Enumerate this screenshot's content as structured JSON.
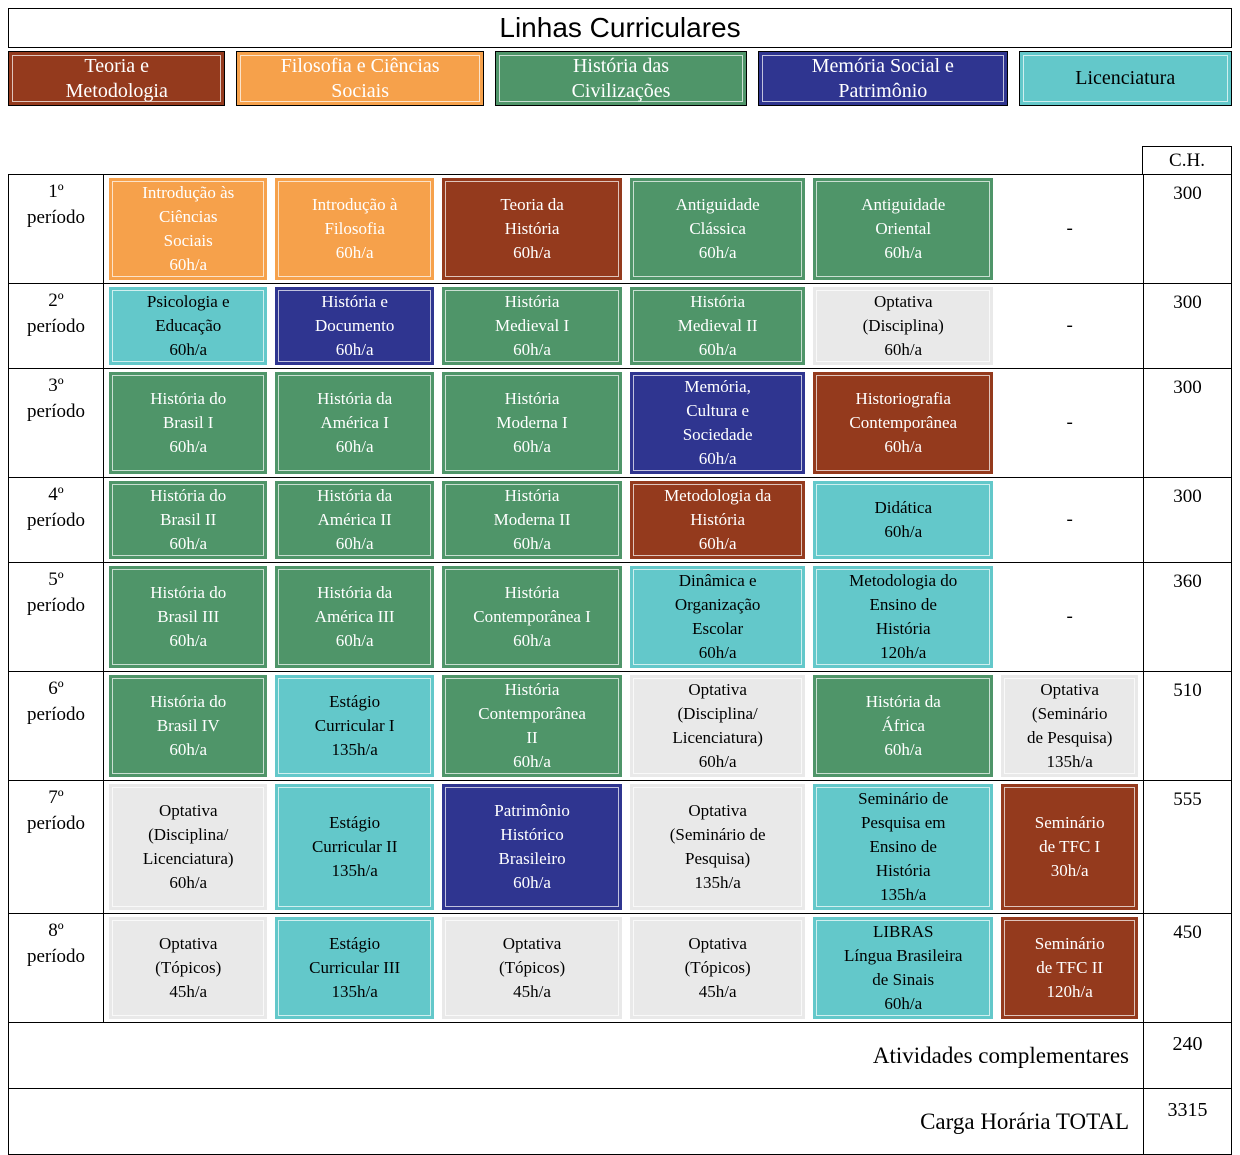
{
  "title": "Linhas Curriculares",
  "ch_header": "C.H.",
  "categories": {
    "teoria": {
      "color": "#943a1d",
      "text_color": "#ffffff"
    },
    "filosofia": {
      "color": "#f6a14b",
      "text_color": "#ffffff"
    },
    "civilizacoes": {
      "color": "#4f9569",
      "text_color": "#ffffff"
    },
    "memoria": {
      "color": "#2f3590",
      "text_color": "#ffffff"
    },
    "licenciatura": {
      "color": "#63c8ca",
      "text_color": "#000000"
    },
    "optativa": {
      "color": "#e9e9e9",
      "text_color": "#000000"
    }
  },
  "legend": [
    {
      "category": "teoria",
      "label": "Teoria e\nMetodologia"
    },
    {
      "category": "filosofia",
      "label": "Filosofia e Ciências\nSociais"
    },
    {
      "category": "civilizacoes",
      "label": "História das\nCivilizações"
    },
    {
      "category": "memoria",
      "label": "Memória Social e\nPatrimônio"
    },
    {
      "category": "licenciatura",
      "label": "Licenciatura"
    }
  ],
  "rows": [
    {
      "period": "1º\nperíodo",
      "ch": "300",
      "cells": [
        {
          "category": "filosofia",
          "text": "Introdução às\nCiências\nSociais\n60h/a"
        },
        {
          "category": "filosofia",
          "text": "Introdução à\nFilosofia\n60h/a"
        },
        {
          "category": "teoria",
          "text": "Teoria da\nHistória\n60h/a"
        },
        {
          "category": "civilizacoes",
          "text": "Antiguidade\nClássica\n60h/a"
        },
        {
          "category": "civilizacoes",
          "text": "Antiguidade\nOriental\n60h/a"
        },
        {
          "category": "none",
          "text": "-"
        }
      ]
    },
    {
      "period": "2º\nperíodo",
      "ch": "300",
      "cells": [
        {
          "category": "licenciatura",
          "text": "Psicologia e\nEducação\n60h/a"
        },
        {
          "category": "memoria",
          "text": "História e\nDocumento\n60h/a"
        },
        {
          "category": "civilizacoes",
          "text": "História\nMedieval I\n60h/a"
        },
        {
          "category": "civilizacoes",
          "text": "História\nMedieval II\n60h/a"
        },
        {
          "category": "optativa",
          "text": "Optativa\n(Disciplina)\n60h/a"
        },
        {
          "category": "none",
          "text": "-"
        }
      ]
    },
    {
      "period": "3º\nperíodo",
      "ch": "300",
      "cells": [
        {
          "category": "civilizacoes",
          "text": "História do\nBrasil I\n60h/a"
        },
        {
          "category": "civilizacoes",
          "text": "História da\nAmérica I\n60h/a"
        },
        {
          "category": "civilizacoes",
          "text": "História\nModerna I\n60h/a"
        },
        {
          "category": "memoria",
          "text": "Memória,\nCultura e\nSociedade\n60h/a"
        },
        {
          "category": "teoria",
          "text": "Historiografia\nContemporânea\n60h/a"
        },
        {
          "category": "none",
          "text": "-"
        }
      ]
    },
    {
      "period": "4º\nperíodo",
      "ch": "300",
      "cells": [
        {
          "category": "civilizacoes",
          "text": "História do\nBrasil II\n60h/a"
        },
        {
          "category": "civilizacoes",
          "text": "História da\nAmérica II\n60h/a"
        },
        {
          "category": "civilizacoes",
          "text": "História\nModerna II\n60h/a"
        },
        {
          "category": "teoria",
          "text": "Metodologia da\nHistória\n60h/a"
        },
        {
          "category": "licenciatura",
          "text": "Didática\n60h/a"
        },
        {
          "category": "none",
          "text": "-"
        }
      ]
    },
    {
      "period": "5º\nperíodo",
      "ch": "360",
      "cells": [
        {
          "category": "civilizacoes",
          "text": "História do\nBrasil III\n60h/a"
        },
        {
          "category": "civilizacoes",
          "text": "História da\nAmérica III\n60h/a"
        },
        {
          "category": "civilizacoes",
          "text": "História\nContemporânea I\n60h/a"
        },
        {
          "category": "licenciatura",
          "text": "Dinâmica e\nOrganização\nEscolar\n60h/a"
        },
        {
          "category": "licenciatura",
          "text": "Metodologia do\nEnsino de\nHistória\n120h/a"
        },
        {
          "category": "none",
          "text": "-"
        }
      ]
    },
    {
      "period": "6º\nperíodo",
      "ch": "510",
      "cells": [
        {
          "category": "civilizacoes",
          "text": "História do\nBrasil IV\n60h/a"
        },
        {
          "category": "licenciatura",
          "text": "Estágio\nCurricular I\n135h/a"
        },
        {
          "category": "civilizacoes",
          "text": "História\nContemporânea\nII\n60h/a"
        },
        {
          "category": "optativa",
          "text": "Optativa\n(Disciplina/\nLicenciatura)\n60h/a"
        },
        {
          "category": "civilizacoes",
          "text": "História da\nÁfrica\n60h/a"
        },
        {
          "category": "optativa",
          "text": "Optativa\n(Seminário\nde Pesquisa)\n135h/a"
        }
      ]
    },
    {
      "period": "7º\nperíodo",
      "ch": "555",
      "cells": [
        {
          "category": "optativa",
          "text": "Optativa\n(Disciplina/\nLicenciatura)\n60h/a"
        },
        {
          "category": "licenciatura",
          "text": "Estágio\nCurricular II\n135h/a"
        },
        {
          "category": "memoria",
          "text": "Patrimônio\nHistórico\nBrasileiro\n60h/a"
        },
        {
          "category": "optativa",
          "text": "Optativa\n(Seminário de\nPesquisa)\n135h/a"
        },
        {
          "category": "licenciatura",
          "text": "Seminário de\nPesquisa em\nEnsino de\nHistória\n135h/a"
        },
        {
          "category": "teoria",
          "text": "Seminário\nde TFC I\n30h/a"
        }
      ]
    },
    {
      "period": "8º\nperíodo",
      "ch": "450",
      "cells": [
        {
          "category": "optativa",
          "text": "Optativa\n(Tópicos)\n45h/a"
        },
        {
          "category": "licenciatura",
          "text": "Estágio\nCurricular III\n135h/a"
        },
        {
          "category": "optativa",
          "text": "Optativa\n(Tópicos)\n45h/a"
        },
        {
          "category": "optativa",
          "text": "Optativa\n(Tópicos)\n45h/a"
        },
        {
          "category": "licenciatura",
          "text": "LIBRAS\nLíngua Brasileira\nde Sinais\n60h/a"
        },
        {
          "category": "teoria",
          "text": "Seminário\nde TFC II\n120h/a"
        }
      ]
    }
  ],
  "footer": [
    {
      "label": "Atividades complementares",
      "value": "240"
    },
    {
      "label": "Carga Horária TOTAL",
      "value": "3315"
    }
  ]
}
